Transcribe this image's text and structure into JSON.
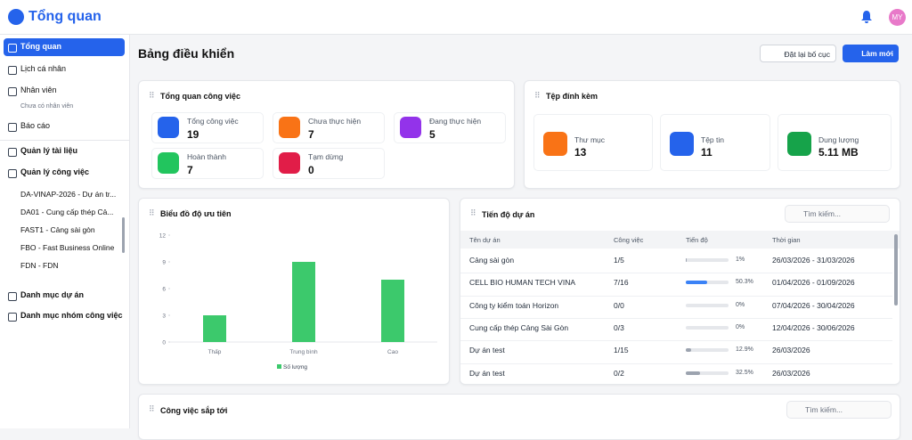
{
  "header": {
    "title": "Tổng quan",
    "avatar": "MY"
  },
  "sidebar": {
    "items": [
      {
        "label": "Tổng quan"
      },
      {
        "label": "Lịch cá nhân"
      },
      {
        "label": "Nhân viên",
        "note": "Chưa có nhân viên"
      },
      {
        "label": "Báo cáo"
      },
      {
        "label": "Quản lý tài liệu"
      },
      {
        "label": "Quản lý công việc",
        "children": [
          "DA-VINAP-2026 - Dự án tr...",
          "DA01 - Cung cấp thép Cả...",
          "FAST1 - Cảng sài gòn",
          "FBO - Fast Business Online",
          "FDN - FDN"
        ]
      },
      {
        "label": "Danh mục dự án"
      },
      {
        "label": "Danh mục nhóm công việc"
      }
    ]
  },
  "page": {
    "title": "Bảng điều khiển",
    "buttons": [
      "Đặt lại bố cục",
      "Làm mới"
    ]
  },
  "overview": {
    "title": "Tổng quan công việc",
    "stats": [
      {
        "label": "Tổng công việc",
        "value": 19
      },
      {
        "label": "Chưa thực hiện",
        "value": 7
      },
      {
        "label": "Đang thực hiện",
        "value": 5
      },
      {
        "label": "Hoàn thành",
        "value": 7
      },
      {
        "label": "Tạm dừng",
        "value": 0
      }
    ]
  },
  "attachments": {
    "title": "Tệp đính kèm",
    "stats": [
      {
        "label": "Thư mục",
        "value": 13
      },
      {
        "label": "Tệp tin",
        "value": 11
      },
      {
        "label": "Dung lượng",
        "value": "5.11 MB"
      }
    ]
  },
  "chart_data": {
    "type": "bar",
    "title": "Biểu đồ độ ưu tiên",
    "categories": [
      "Thấp",
      "Trung bình",
      "Cao"
    ],
    "series": [
      {
        "name": "Số lượng",
        "color": "#3cc96c",
        "values": [
          3,
          9,
          7
        ]
      }
    ],
    "ylim": [
      0,
      12
    ],
    "yticks": [
      0,
      3,
      6,
      9,
      12
    ]
  },
  "progress": {
    "title": "Tiến độ dự án",
    "search": "Tìm kiếm...",
    "columns": [
      "Tên dự án",
      "Công việc",
      "Tiến độ",
      "Thời gian"
    ],
    "rows": [
      {
        "name": "Cảng sài gòn",
        "tasks": "1/5",
        "progress": {
          "value": 1,
          "label": "1%"
        },
        "time": "26/03/2026 - 31/03/2026"
      },
      {
        "name": "CELL BIO HUMAN TECH VINA",
        "tasks": "7/16",
        "progress": {
          "value": 50.3,
          "label": "50.3%"
        },
        "time": "01/04/2026 - 01/09/2026"
      },
      {
        "name": "Công ty kiểm toán Horizon",
        "tasks": "0/0",
        "progress": {
          "value": 0,
          "label": "0%"
        },
        "time": "07/04/2026 - 30/04/2026"
      },
      {
        "name": "Cung cấp thép Cảng Sài Gòn",
        "tasks": "0/3",
        "progress": {
          "value": 0,
          "label": "0%"
        },
        "time": "12/04/2026 - 30/06/2026"
      },
      {
        "name": "Dự án test",
        "tasks": "1/15",
        "progress": {
          "value": 12.9,
          "label": "12.9%"
        },
        "time": "26/03/2026"
      },
      {
        "name": "Dự án test",
        "tasks": "0/2",
        "progress": {
          "value": 32.5,
          "label": "32.5%"
        },
        "time": "26/03/2026"
      }
    ]
  },
  "upcoming": {
    "title": "Công việc sắp tới",
    "search": "Tìm kiếm..."
  }
}
